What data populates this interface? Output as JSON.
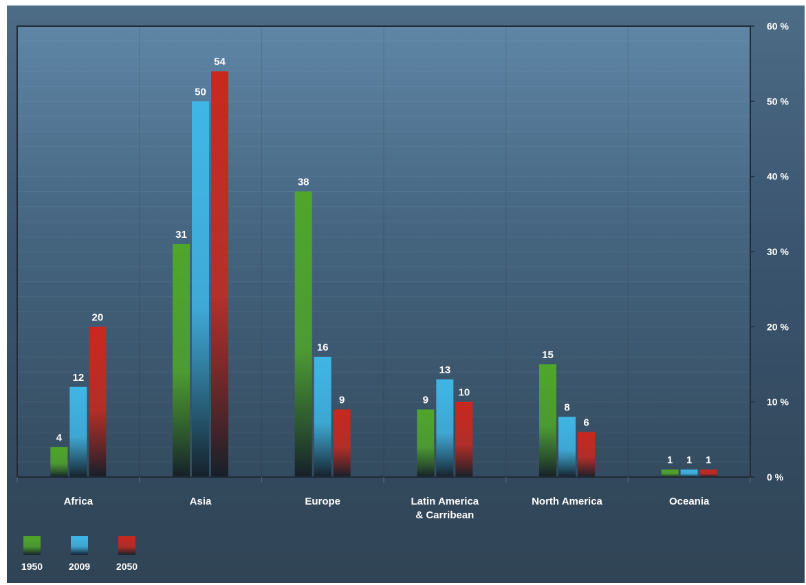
{
  "chart_data": {
    "type": "bar",
    "categories": [
      "Africa",
      "Asia",
      "Europe",
      "Latin America\n& Carribean",
      "North America",
      "Oceania"
    ],
    "series": [
      {
        "name": "1950",
        "values": [
          4,
          31,
          38,
          9,
          15,
          1
        ],
        "color": "#4fa62a"
      },
      {
        "name": "2009",
        "values": [
          12,
          50,
          16,
          13,
          8,
          1
        ],
        "color": "#3fb6e6"
      },
      {
        "name": "2050",
        "values": [
          20,
          54,
          9,
          10,
          6,
          1
        ],
        "color": "#c8281e"
      }
    ],
    "ylim": [
      0,
      60
    ],
    "yticks": [
      0,
      10,
      20,
      30,
      40,
      50,
      60
    ],
    "ytick_labels": [
      "0 %",
      "10 %",
      "20 %",
      "30 %",
      "40 %",
      "50 %",
      "60 %"
    ],
    "y_axis_side": "right",
    "grid": true,
    "legend_position": "bottom-left",
    "colors": {
      "plot_background": "#4a6a85",
      "axis_line": "#1f2c37",
      "text": "#ffffff"
    }
  }
}
